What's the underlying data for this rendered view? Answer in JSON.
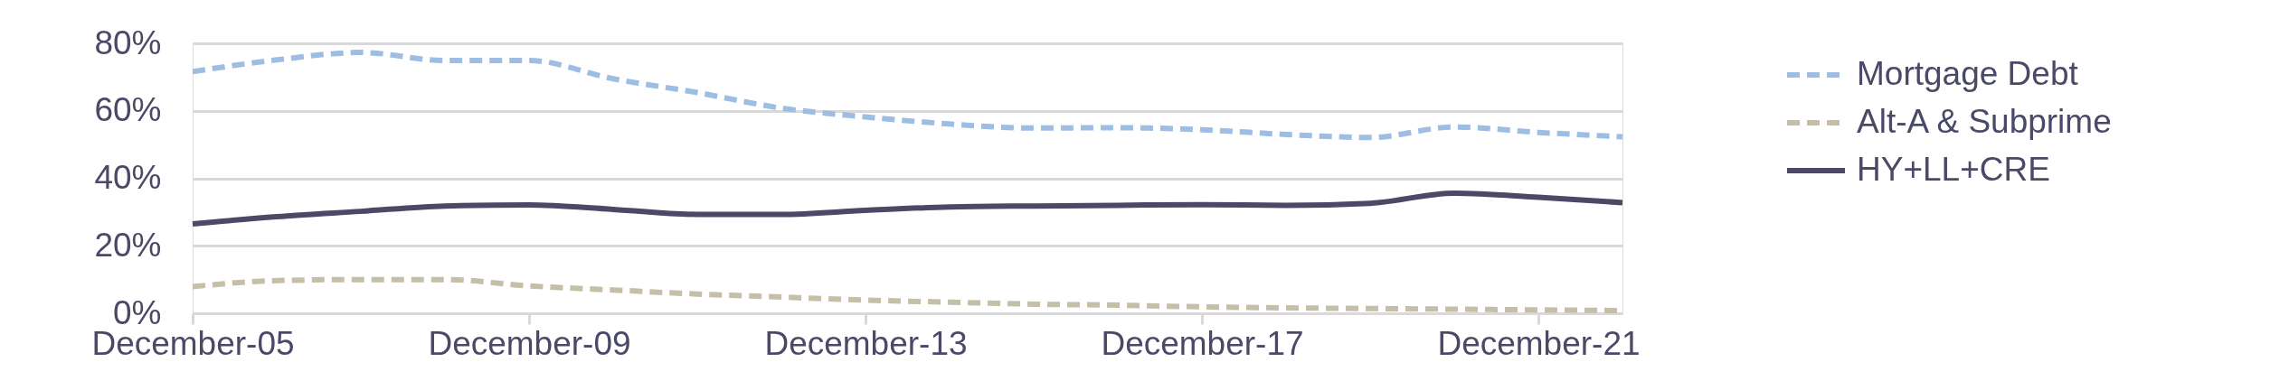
{
  "chart_data": {
    "type": "line",
    "categories": [
      "December-05",
      null,
      null,
      null,
      "December-09",
      null,
      null,
      null,
      "December-13",
      null,
      null,
      null,
      "December-17",
      null,
      null,
      null,
      "December-21",
      null
    ],
    "series": [
      {
        "name": "Mortgage Debt",
        "color": "#9dbde3",
        "line_style": "dashed",
        "values": [
          71.6,
          75.1,
          77.3,
          74.9,
          74.9,
          69.5,
          65.4,
          60.8,
          58.2,
          56.1,
          54.9,
          55.0,
          54.4,
          53.0,
          52.1,
          55.2,
          53.6,
          52.3
        ]
      },
      {
        "name": "Alt-A & Subprime",
        "color": "#c4bfa6",
        "line_style": "dashed",
        "values": [
          7.9,
          9.7,
          10.0,
          10.0,
          8.1,
          6.9,
          5.7,
          4.8,
          3.9,
          3.3,
          2.7,
          2.4,
          1.9,
          1.6,
          1.4,
          1.2,
          1.0,
          0.8
        ]
      },
      {
        "name": "HY+LL+CRE",
        "color": "#4a4a68",
        "line_style": "solid",
        "values": [
          26.5,
          28.6,
          30.2,
          31.8,
          32.1,
          30.8,
          29.3,
          29.3,
          30.5,
          31.5,
          31.8,
          32.0,
          32.2,
          32.0,
          32.6,
          35.6,
          34.4,
          32.8
        ]
      }
    ],
    "ylim": [
      0,
      80
    ],
    "yticks": [
      {
        "value": 0,
        "label": "0%"
      },
      {
        "value": 20,
        "label": "20%"
      },
      {
        "value": 40,
        "label": "40%"
      },
      {
        "value": 60,
        "label": "60%"
      },
      {
        "value": 80,
        "label": "80%"
      }
    ],
    "grid": "y",
    "legend": "right"
  }
}
